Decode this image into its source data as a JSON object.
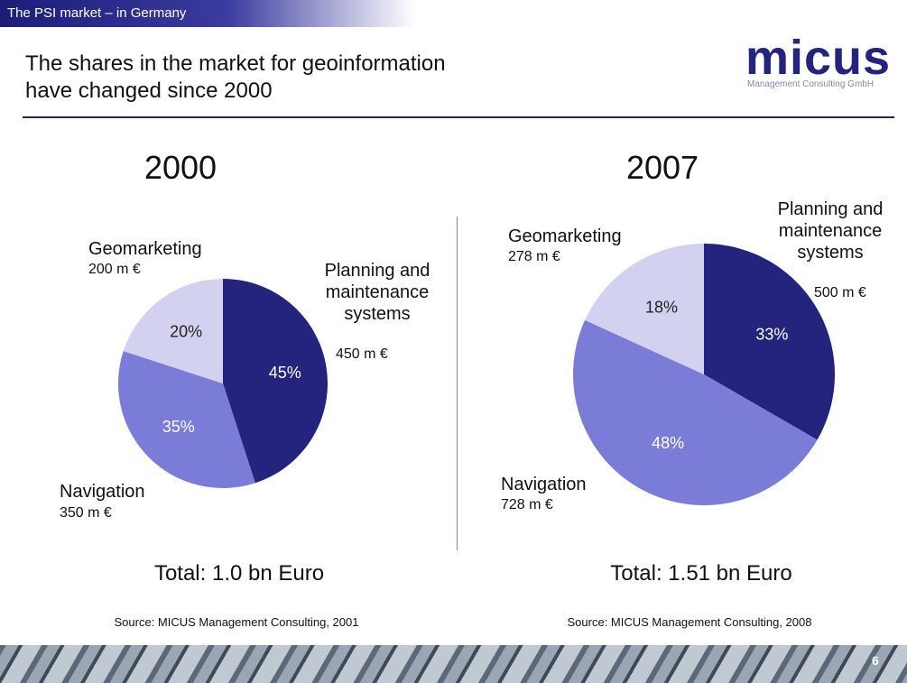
{
  "slide": {
    "header": "The PSI market – in Germany",
    "title": "The shares in the market for geoinformation have changed since 2000",
    "logo": "micus",
    "logo_subtitle": "Management Consulting GmbH",
    "page_number": "6"
  },
  "chart_data": [
    {
      "type": "pie",
      "title": "2000",
      "categories": [
        "Planning and maintenance systems",
        "Navigation",
        "Geomarketing"
      ],
      "values": [
        45,
        35,
        20
      ],
      "value_labels": [
        "45%",
        "35%",
        "20%"
      ],
      "amount_labels": [
        "450 m €",
        "350 m €",
        "200 m €"
      ],
      "colors": [
        "#24247f",
        "#7b7bd8",
        "#d2d2f0"
      ],
      "total": "Total: 1.0 bn Euro",
      "source": "Source: MICUS Management Consulting, 2001"
    },
    {
      "type": "pie",
      "title": "2007",
      "categories": [
        "Planning and maintenance systems",
        "Navigation",
        "Geomarketing"
      ],
      "values": [
        33,
        48,
        18
      ],
      "value_labels": [
        "33%",
        "48%",
        "18%"
      ],
      "amount_labels": [
        "500 m €",
        "728 m €",
        "278 m €"
      ],
      "colors": [
        "#24247f",
        "#7b7bd8",
        "#d2d2f0"
      ],
      "total": "Total: 1.51 bn Euro",
      "source": "Source: MICUS Management Consulting, 2008"
    }
  ]
}
